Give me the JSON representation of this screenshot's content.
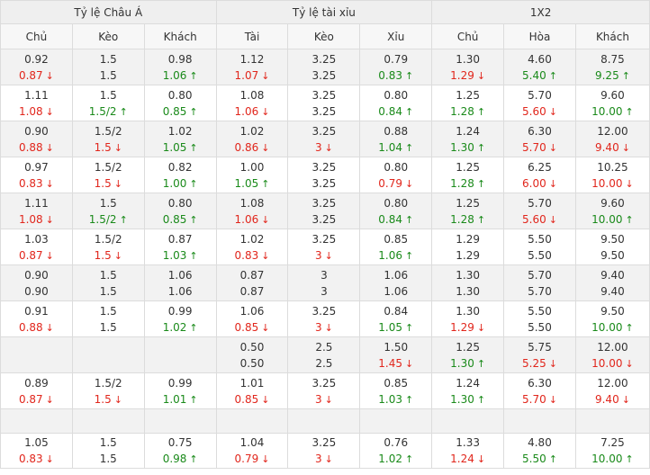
{
  "groups": [
    "Tỷ lệ Châu Á",
    "Tỷ lệ tài xỉu",
    "1X2"
  ],
  "columns": [
    "Chủ",
    "Kèo",
    "Khách",
    "Tài",
    "Kèo",
    "Xỉu",
    "Chủ",
    "Hòa",
    "Khách"
  ],
  "colors": {
    "up": "#1a8a1a",
    "down": "#e1261c",
    "header_bg": "#efefef",
    "row_alt_bg": "#f2f2f2"
  },
  "icons": {
    "up": "arrow-up-icon",
    "down": "arrow-down-icon"
  },
  "rows": [
    {
      "cells": [
        {
          "a": "0.92",
          "b": "0.87",
          "d": "down"
        },
        {
          "a": "1.5",
          "b": "1.5",
          "d": ""
        },
        {
          "a": "0.98",
          "b": "1.06",
          "d": "up"
        },
        {
          "a": "1.12",
          "b": "1.07",
          "d": "down"
        },
        {
          "a": "3.25",
          "b": "3.25",
          "d": ""
        },
        {
          "a": "0.79",
          "b": "0.83",
          "d": "up"
        },
        {
          "a": "1.30",
          "b": "1.29",
          "d": "down"
        },
        {
          "a": "4.60",
          "b": "5.40",
          "d": "up"
        },
        {
          "a": "8.75",
          "b": "9.25",
          "d": "up"
        }
      ]
    },
    {
      "cells": [
        {
          "a": "1.11",
          "b": "1.08",
          "d": "down"
        },
        {
          "a": "1.5",
          "b": "1.5/2",
          "d": "up"
        },
        {
          "a": "0.80",
          "b": "0.85",
          "d": "up"
        },
        {
          "a": "1.08",
          "b": "1.06",
          "d": "down"
        },
        {
          "a": "3.25",
          "b": "3.25",
          "d": ""
        },
        {
          "a": "0.80",
          "b": "0.84",
          "d": "up"
        },
        {
          "a": "1.25",
          "b": "1.28",
          "d": "up"
        },
        {
          "a": "5.70",
          "b": "5.60",
          "d": "down"
        },
        {
          "a": "9.60",
          "b": "10.00",
          "d": "up"
        }
      ]
    },
    {
      "cells": [
        {
          "a": "0.90",
          "b": "0.88",
          "d": "down"
        },
        {
          "a": "1.5/2",
          "b": "1.5",
          "d": "down"
        },
        {
          "a": "1.02",
          "b": "1.05",
          "d": "up"
        },
        {
          "a": "1.02",
          "b": "0.86",
          "d": "down"
        },
        {
          "a": "3.25",
          "b": "3",
          "d": "down"
        },
        {
          "a": "0.88",
          "b": "1.04",
          "d": "up"
        },
        {
          "a": "1.24",
          "b": "1.30",
          "d": "up"
        },
        {
          "a": "6.30",
          "b": "5.70",
          "d": "down"
        },
        {
          "a": "12.00",
          "b": "9.40",
          "d": "down"
        }
      ]
    },
    {
      "cells": [
        {
          "a": "0.97",
          "b": "0.83",
          "d": "down"
        },
        {
          "a": "1.5/2",
          "b": "1.5",
          "d": "down"
        },
        {
          "a": "0.82",
          "b": "1.00",
          "d": "up"
        },
        {
          "a": "1.00",
          "b": "1.05",
          "d": "up"
        },
        {
          "a": "3.25",
          "b": "3.25",
          "d": ""
        },
        {
          "a": "0.80",
          "b": "0.79",
          "d": "down"
        },
        {
          "a": "1.25",
          "b": "1.28",
          "d": "up"
        },
        {
          "a": "6.25",
          "b": "6.00",
          "d": "down"
        },
        {
          "a": "10.25",
          "b": "10.00",
          "d": "down"
        }
      ]
    },
    {
      "cells": [
        {
          "a": "1.11",
          "b": "1.08",
          "d": "down"
        },
        {
          "a": "1.5",
          "b": "1.5/2",
          "d": "up"
        },
        {
          "a": "0.80",
          "b": "0.85",
          "d": "up"
        },
        {
          "a": "1.08",
          "b": "1.06",
          "d": "down"
        },
        {
          "a": "3.25",
          "b": "3.25",
          "d": ""
        },
        {
          "a": "0.80",
          "b": "0.84",
          "d": "up"
        },
        {
          "a": "1.25",
          "b": "1.28",
          "d": "up"
        },
        {
          "a": "5.70",
          "b": "5.60",
          "d": "down"
        },
        {
          "a": "9.60",
          "b": "10.00",
          "d": "up"
        }
      ]
    },
    {
      "cells": [
        {
          "a": "1.03",
          "b": "0.87",
          "d": "down"
        },
        {
          "a": "1.5/2",
          "b": "1.5",
          "d": "down"
        },
        {
          "a": "0.87",
          "b": "1.03",
          "d": "up"
        },
        {
          "a": "1.02",
          "b": "0.83",
          "d": "down"
        },
        {
          "a": "3.25",
          "b": "3",
          "d": "down"
        },
        {
          "a": "0.85",
          "b": "1.06",
          "d": "up"
        },
        {
          "a": "1.29",
          "b": "1.29",
          "d": ""
        },
        {
          "a": "5.50",
          "b": "5.50",
          "d": ""
        },
        {
          "a": "9.50",
          "b": "9.50",
          "d": ""
        }
      ]
    },
    {
      "cells": [
        {
          "a": "0.90",
          "b": "0.90",
          "d": ""
        },
        {
          "a": "1.5",
          "b": "1.5",
          "d": ""
        },
        {
          "a": "1.06",
          "b": "1.06",
          "d": ""
        },
        {
          "a": "0.87",
          "b": "0.87",
          "d": ""
        },
        {
          "a": "3",
          "b": "3",
          "d": ""
        },
        {
          "a": "1.06",
          "b": "1.06",
          "d": ""
        },
        {
          "a": "1.30",
          "b": "1.30",
          "d": ""
        },
        {
          "a": "5.70",
          "b": "5.70",
          "d": ""
        },
        {
          "a": "9.40",
          "b": "9.40",
          "d": ""
        }
      ]
    },
    {
      "cells": [
        {
          "a": "0.91",
          "b": "0.88",
          "d": "down"
        },
        {
          "a": "1.5",
          "b": "1.5",
          "d": ""
        },
        {
          "a": "0.99",
          "b": "1.02",
          "d": "up"
        },
        {
          "a": "1.06",
          "b": "0.85",
          "d": "down"
        },
        {
          "a": "3.25",
          "b": "3",
          "d": "down"
        },
        {
          "a": "0.84",
          "b": "1.05",
          "d": "up"
        },
        {
          "a": "1.30",
          "b": "1.29",
          "d": "down"
        },
        {
          "a": "5.50",
          "b": "5.50",
          "d": ""
        },
        {
          "a": "9.50",
          "b": "10.00",
          "d": "up"
        }
      ]
    },
    {
      "cells": [
        {
          "a": "",
          "b": "",
          "d": ""
        },
        {
          "a": "",
          "b": "",
          "d": ""
        },
        {
          "a": "",
          "b": "",
          "d": ""
        },
        {
          "a": "0.50",
          "b": "0.50",
          "d": ""
        },
        {
          "a": "2.5",
          "b": "2.5",
          "d": ""
        },
        {
          "a": "1.50",
          "b": "1.45",
          "d": "down"
        },
        {
          "a": "1.25",
          "b": "1.30",
          "d": "up"
        },
        {
          "a": "5.75",
          "b": "5.25",
          "d": "down"
        },
        {
          "a": "12.00",
          "b": "10.00",
          "d": "down"
        }
      ]
    },
    {
      "cells": [
        {
          "a": "0.89",
          "b": "0.87",
          "d": "down"
        },
        {
          "a": "1.5/2",
          "b": "1.5",
          "d": "down"
        },
        {
          "a": "0.99",
          "b": "1.01",
          "d": "up"
        },
        {
          "a": "1.01",
          "b": "0.85",
          "d": "down"
        },
        {
          "a": "3.25",
          "b": "3",
          "d": "down"
        },
        {
          "a": "0.85",
          "b": "1.03",
          "d": "up"
        },
        {
          "a": "1.24",
          "b": "1.30",
          "d": "up"
        },
        {
          "a": "6.30",
          "b": "5.70",
          "d": "down"
        },
        {
          "a": "12.00",
          "b": "9.40",
          "d": "down"
        }
      ]
    },
    {
      "empty": true
    },
    {
      "cells": [
        {
          "a": "1.05",
          "b": "0.83",
          "d": "down"
        },
        {
          "a": "1.5",
          "b": "1.5",
          "d": ""
        },
        {
          "a": "0.75",
          "b": "0.98",
          "d": "up"
        },
        {
          "a": "1.04",
          "b": "0.79",
          "d": "down"
        },
        {
          "a": "3.25",
          "b": "3",
          "d": "down"
        },
        {
          "a": "0.76",
          "b": "1.02",
          "d": "up"
        },
        {
          "a": "1.33",
          "b": "1.24",
          "d": "down"
        },
        {
          "a": "4.80",
          "b": "5.50",
          "d": "up"
        },
        {
          "a": "7.25",
          "b": "10.00",
          "d": "up"
        }
      ]
    }
  ]
}
